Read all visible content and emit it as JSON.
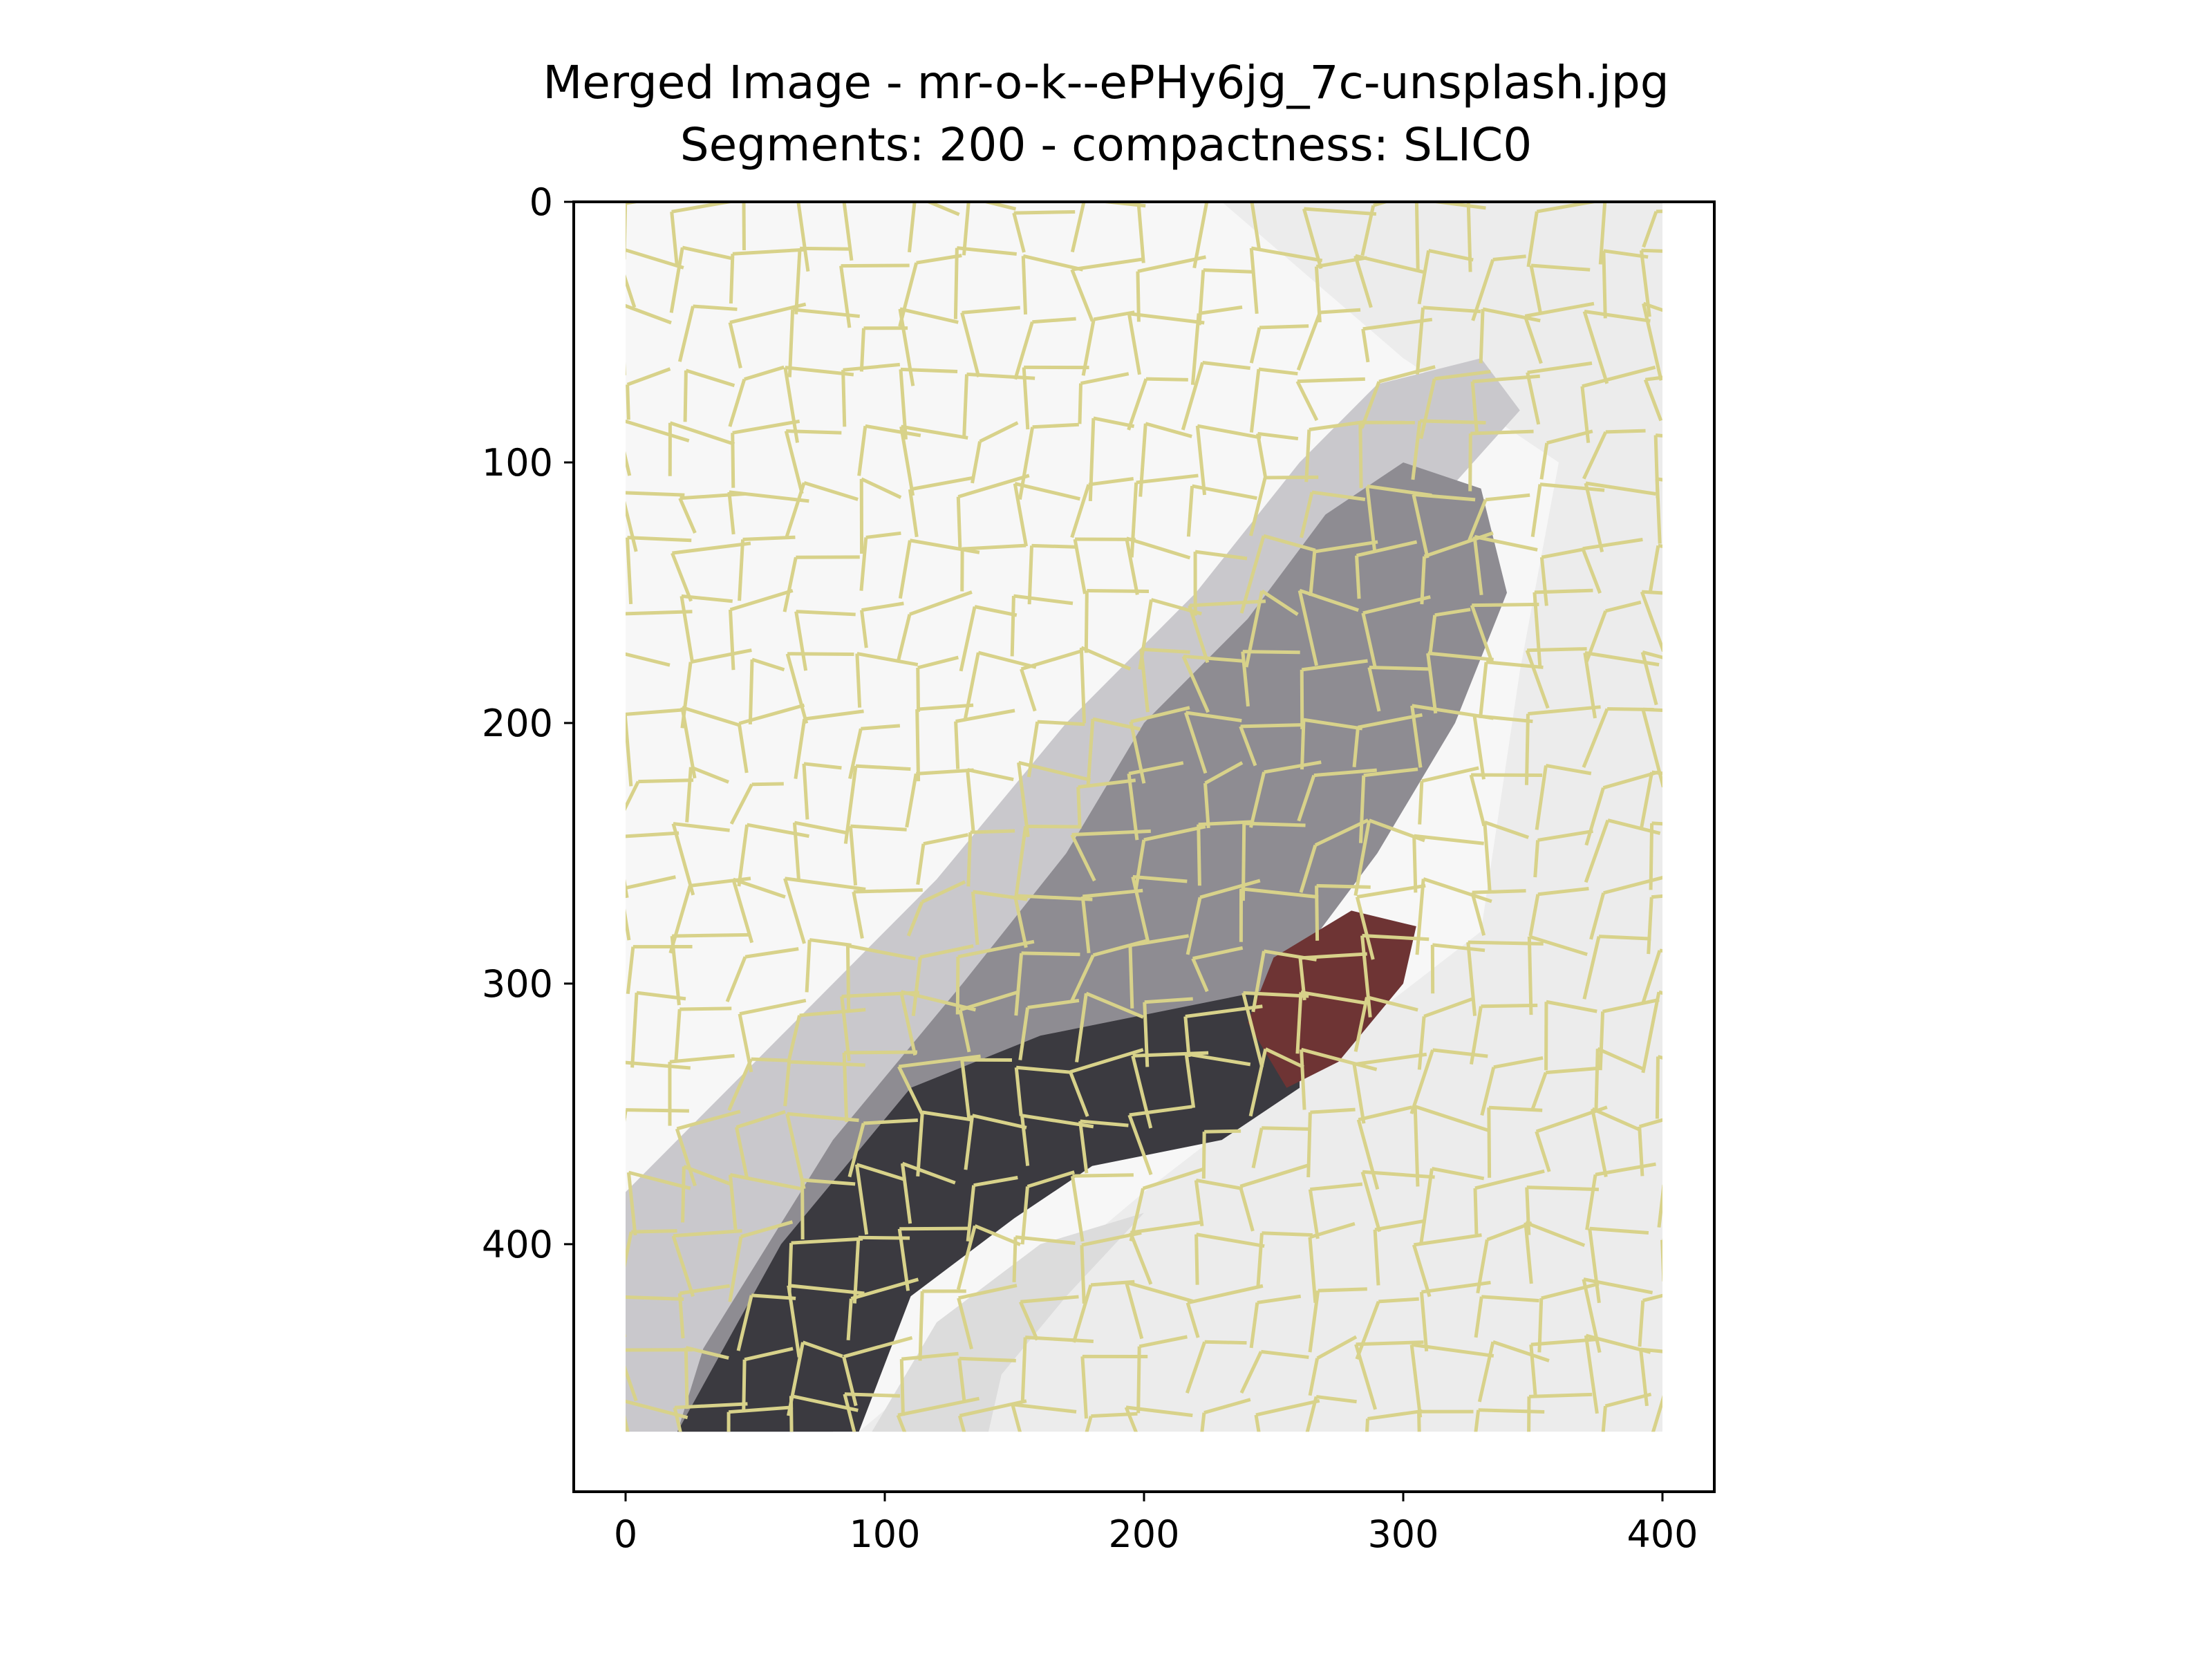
{
  "chart_data": {
    "type": "image",
    "title_line1": "Merged Image - mr-o-k--ePHy6jg_7c-unsplash.jpg",
    "title_line2": "Segments: 200 - compactness: SLIC0",
    "xlabel": "",
    "ylabel": "",
    "xlim": [
      -20,
      420
    ],
    "ylim": [
      495,
      0
    ],
    "x_ticks": [
      0,
      100,
      200,
      300,
      400
    ],
    "y_ticks": [
      0,
      100,
      200,
      300,
      400
    ],
    "image_extent": {
      "x": [
        0,
        400
      ],
      "y": [
        0,
        472
      ]
    },
    "n_segments": 200,
    "colors": {
      "background": "#f7f7f7",
      "boundary": "#d8d28a",
      "hand_light": "#c9c8cc",
      "hand_mid": "#8e8c92",
      "hand_dark": "#3b3a40",
      "hand_red": "#6e3434",
      "right_bg": "#ececec"
    }
  }
}
